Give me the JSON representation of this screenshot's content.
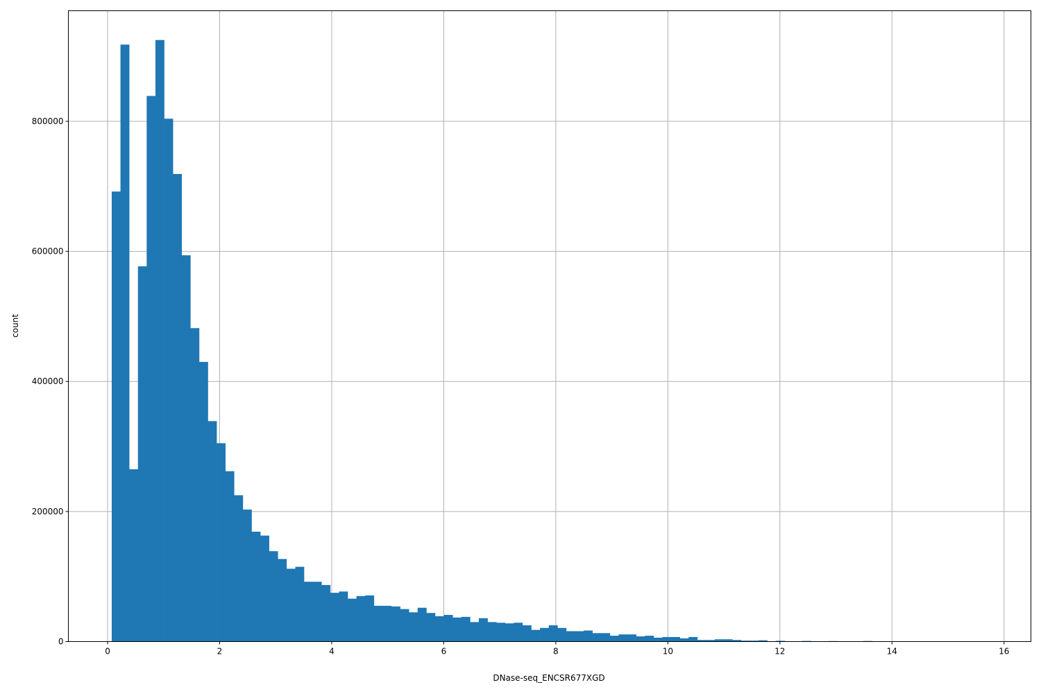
{
  "chart_data": {
    "type": "bar",
    "subtype": "histogram",
    "title": "",
    "xlabel": "DNase-seq_ENCSR677XGD",
    "ylabel": "count",
    "xlim": [
      -0.7,
      16.48
    ],
    "ylim": [
      0,
      970000
    ],
    "grid": true,
    "bar_color": "#1f77b4",
    "grid_color": "#b0b0b0",
    "x_ticks": [
      0,
      2,
      4,
      6,
      8,
      10,
      12,
      14,
      16
    ],
    "x_tick_labels": [
      "0",
      "2",
      "4",
      "6",
      "8",
      "10",
      "12",
      "14",
      "16"
    ],
    "y_ticks": [
      0,
      200000,
      400000,
      600000,
      800000
    ],
    "y_tick_labels": [
      "0",
      "200000",
      "400000",
      "600000",
      "800000"
    ],
    "bin_start": 0.074,
    "bin_width": 0.156,
    "counts": [
      692000,
      918000,
      265000,
      577000,
      839000,
      925000,
      804000,
      719000,
      594000,
      482000,
      430000,
      339000,
      305000,
      262000,
      225000,
      203000,
      169000,
      163000,
      139000,
      127000,
      112000,
      115000,
      92000,
      92000,
      87000,
      75000,
      77000,
      66000,
      70000,
      71000,
      55000,
      55000,
      54000,
      50000,
      45000,
      52000,
      44000,
      39000,
      41000,
      37000,
      38000,
      30000,
      36000,
      30000,
      29000,
      28000,
      29000,
      25000,
      18000,
      21000,
      25000,
      21000,
      16000,
      16000,
      17000,
      13000,
      13000,
      9000,
      11000,
      11000,
      8000,
      9000,
      6000,
      7000,
      7000,
      5000,
      7000,
      2500,
      2500,
      3500,
      3500,
      2500,
      1500,
      1500,
      2000,
      600,
      1200,
      500,
      400,
      1000,
      400,
      300,
      800,
      300,
      200,
      300,
      900,
      200,
      100,
      100,
      100,
      80,
      60,
      50,
      40,
      30,
      20,
      20,
      10,
      10
    ]
  }
}
